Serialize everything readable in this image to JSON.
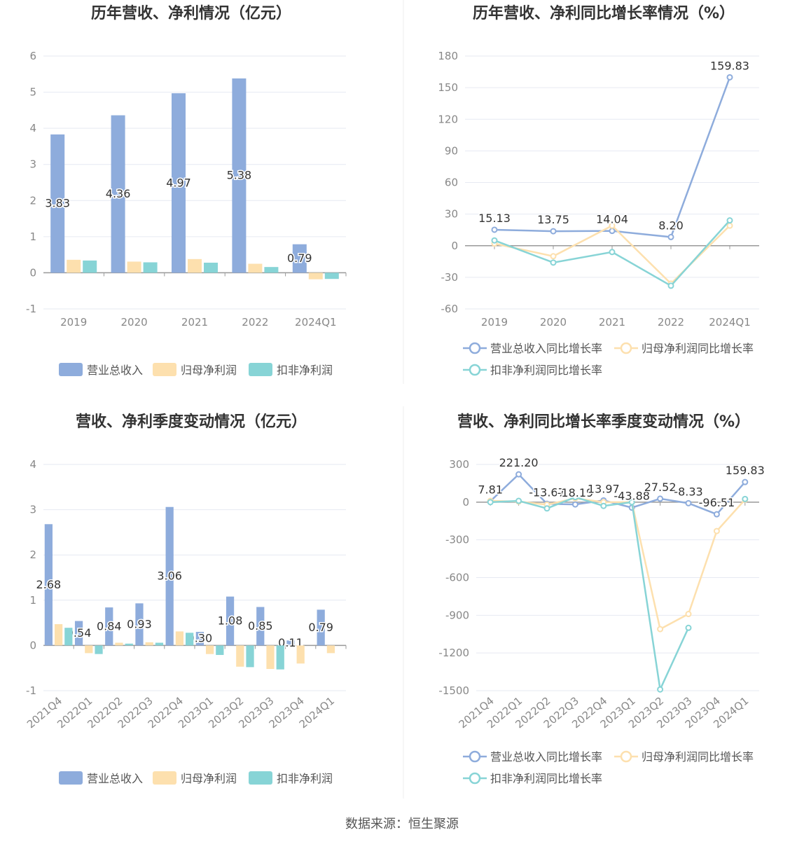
{
  "colors": {
    "revenue": "#8eacdc",
    "parent_profit": "#fde0ae",
    "nonrecurring_profit": "#87d4d6",
    "axis": "#999999",
    "grid": "#e6e9f2",
    "title": "#333333",
    "label": "#333333",
    "tick": "#888888"
  },
  "source": "数据来源：恒生聚源",
  "chart_data": [
    {
      "type": "bar",
      "title": "历年营收、净利情况（亿元）",
      "categories": [
        "2019",
        "2020",
        "2021",
        "2022",
        "2024Q1"
      ],
      "ylim": [
        -1,
        6
      ],
      "yticks": [
        -1,
        0,
        1,
        2,
        3,
        4,
        5,
        6
      ],
      "grid": true,
      "legend_position": "bottom",
      "series": [
        {
          "name": "营业总收入",
          "values": [
            3.83,
            4.36,
            4.97,
            5.38,
            0.79
          ],
          "labels": [
            "3.83",
            "4.36",
            "4.97",
            "5.38",
            "0.79"
          ]
        },
        {
          "name": "归母净利润",
          "values": [
            0.36,
            0.31,
            0.38,
            0.25,
            -0.18
          ]
        },
        {
          "name": "扣非净利润",
          "values": [
            0.34,
            0.29,
            0.28,
            0.16,
            -0.17
          ]
        }
      ]
    },
    {
      "type": "line",
      "title": "历年营收、净利同比增长率情况（%）",
      "categories": [
        "2019",
        "2020",
        "2021",
        "2022",
        "2024Q1"
      ],
      "ylim": [
        -60,
        180
      ],
      "yticks": [
        -60,
        -30,
        0,
        30,
        60,
        90,
        120,
        150,
        180
      ],
      "grid": true,
      "legend_position": "bottom",
      "series": [
        {
          "name": "营业总收入同比增长率",
          "values": [
            15.13,
            13.75,
            14.04,
            8.2,
            159.83
          ],
          "labels": [
            "15.13",
            "13.75",
            "14.04",
            "8.20",
            "159.83"
          ]
        },
        {
          "name": "归母净利润同比增长率",
          "values": [
            2,
            -10,
            19,
            -36,
            19
          ]
        },
        {
          "name": "扣非净利润同比增长率",
          "values": [
            5,
            -16,
            -6,
            -38,
            24
          ]
        }
      ]
    },
    {
      "type": "bar",
      "title": "营收、净利季度变动情况（亿元）",
      "categories": [
        "2021Q4",
        "2022Q1",
        "2022Q2",
        "2022Q3",
        "2022Q4",
        "2023Q1",
        "2023Q2",
        "2023Q3",
        "2023Q4",
        "2024Q1"
      ],
      "ylim": [
        -1,
        4
      ],
      "yticks": [
        -1,
        0,
        1,
        2,
        3,
        4
      ],
      "grid": true,
      "legend_position": "bottom",
      "series": [
        {
          "name": "营业总收入",
          "values": [
            2.68,
            0.54,
            0.84,
            0.93,
            3.06,
            0.3,
            1.08,
            0.85,
            0.11,
            0.79
          ],
          "labels": [
            "2.68",
            "0.54",
            "0.84",
            "0.93",
            "3.06",
            "0.30",
            "1.08",
            "0.85",
            "0.11",
            "0.79"
          ]
        },
        {
          "name": "归母净利润",
          "values": [
            0.47,
            -0.17,
            0.06,
            0.07,
            0.31,
            -0.19,
            -0.47,
            -0.52,
            -0.4,
            -0.17
          ]
        },
        {
          "name": "扣非净利润",
          "values": [
            0.39,
            -0.19,
            0.04,
            0.06,
            0.28,
            -0.21,
            -0.48,
            -0.53,
            0.0,
            0.0
          ]
        }
      ]
    },
    {
      "type": "line",
      "title": "营收、净利同比增长率季度变动情况（%）",
      "categories": [
        "2021Q4",
        "2022Q1",
        "2022Q2",
        "2022Q3",
        "2022Q4",
        "2023Q1",
        "2023Q2",
        "2023Q3",
        "2023Q4",
        "2024Q1"
      ],
      "ylim": [
        -1500,
        300
      ],
      "yticks": [
        -1500,
        -1200,
        -900,
        -600,
        -300,
        0,
        300
      ],
      "grid": true,
      "legend_position": "bottom",
      "series": [
        {
          "name": "营业总收入同比增长率",
          "values": [
            7.81,
            221.2,
            -13.67,
            -18.19,
            13.97,
            -43.88,
            27.52,
            -8.33,
            -96.51,
            159.83
          ],
          "labels": [
            "7.81",
            "221.20",
            "-13.67",
            "-18.19",
            "13.97",
            "-43.88",
            "27.52",
            "-8.33",
            "-96.51",
            "159.83"
          ]
        },
        {
          "name": "归母净利润同比增长率",
          "values": [
            10,
            5,
            -20,
            30,
            0,
            0,
            -1010,
            -890,
            -230,
            20
          ]
        },
        {
          "name": "扣非净利润同比增长率",
          "values": [
            0,
            10,
            -50,
            40,
            -30,
            0,
            -1490,
            -1000,
            null,
            25
          ]
        }
      ]
    }
  ]
}
